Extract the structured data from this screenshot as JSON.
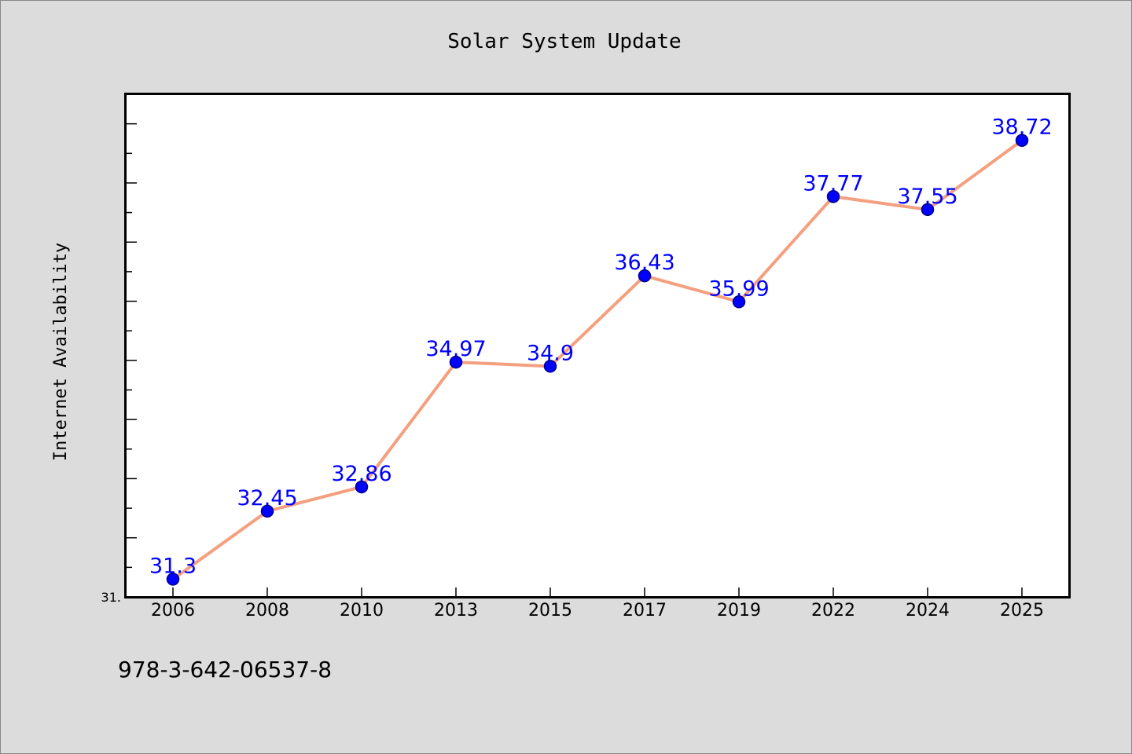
{
  "chart_data": {
    "type": "line",
    "title": "Solar System Update",
    "xlabel": "",
    "ylabel": "Internet Availability",
    "categories": [
      "2006",
      "2008",
      "2010",
      "2013",
      "2015",
      "2017",
      "2019",
      "2022",
      "2024",
      "2025"
    ],
    "series": [
      {
        "values": [
          31.3,
          32.45,
          32.86,
          34.97,
          34.9,
          36.43,
          35.99,
          37.77,
          37.55,
          38.72
        ],
        "labels": [
          "31.3",
          "32.45",
          "32.86",
          "34.97",
          "34.9",
          "36.43",
          "35.99",
          "37.77",
          "37.55",
          "38.72"
        ]
      }
    ],
    "ylim": [
      31.0,
      39.5
    ],
    "y_tick_labels": [
      {
        "value": 31.0,
        "label": "31."
      }
    ],
    "grid": false,
    "legend": "none",
    "colors": {
      "line": "#f4a07f",
      "marker": "#0000ff",
      "marker_edge": "#00008b",
      "data_label": "#0000ff",
      "background": "#dcdcdc",
      "plot_background": "#ffffff",
      "frame": "#000000"
    }
  },
  "footer_text": "978-3-642-06537-8"
}
